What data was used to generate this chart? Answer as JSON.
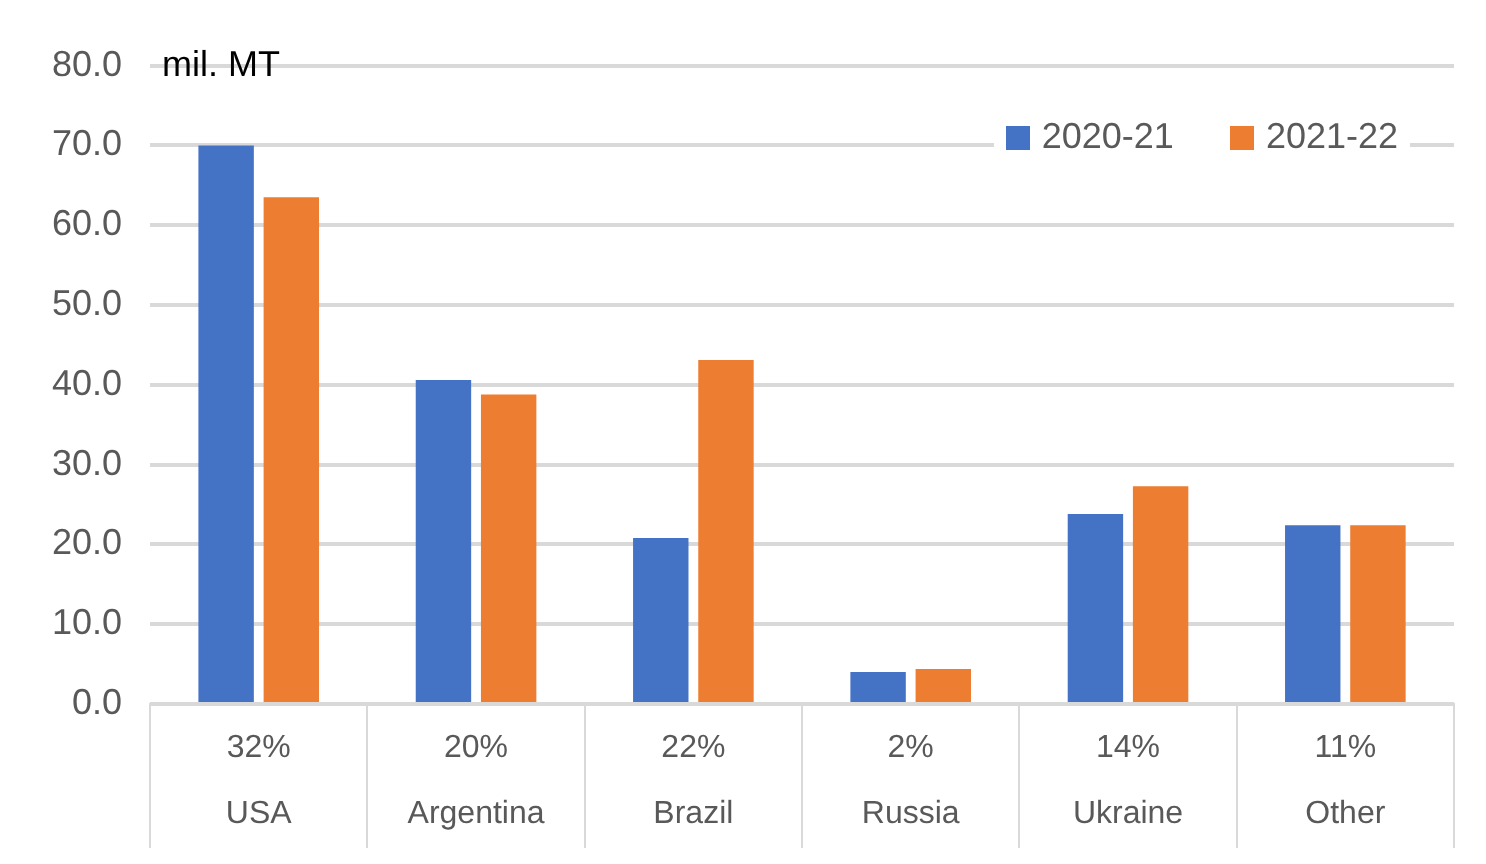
{
  "chart_data": {
    "type": "bar",
    "ylabel": "mil. MT",
    "categories": [
      "USA",
      "Argentina",
      "Brazil",
      "Russia",
      "Ukraine",
      "Other"
    ],
    "series": [
      {
        "name": "2020-21",
        "color": "#4472c4",
        "values": [
          70.0,
          40.6,
          20.8,
          4.0,
          23.8,
          22.4
        ]
      },
      {
        "name": "2021-22",
        "color": "#ed7d31",
        "values": [
          63.5,
          38.8,
          43.1,
          4.4,
          27.3,
          22.4
        ]
      }
    ],
    "ylim": [
      0,
      80
    ],
    "yticks": [
      {
        "value": 0,
        "label": "0.0"
      },
      {
        "value": 10,
        "label": "10.0"
      },
      {
        "value": 20,
        "label": "20.0"
      },
      {
        "value": 30,
        "label": "30.0"
      },
      {
        "value": 40,
        "label": "40.0"
      },
      {
        "value": 50,
        "label": "50.0"
      },
      {
        "value": 60,
        "label": "60.0"
      },
      {
        "value": 70,
        "label": "70.0"
      },
      {
        "value": 80,
        "label": "80.0"
      }
    ],
    "grid": "y",
    "legend": "top right",
    "annotations": [
      "32%",
      "20%",
      "22%",
      "2%",
      "14%",
      "11%"
    ]
  }
}
